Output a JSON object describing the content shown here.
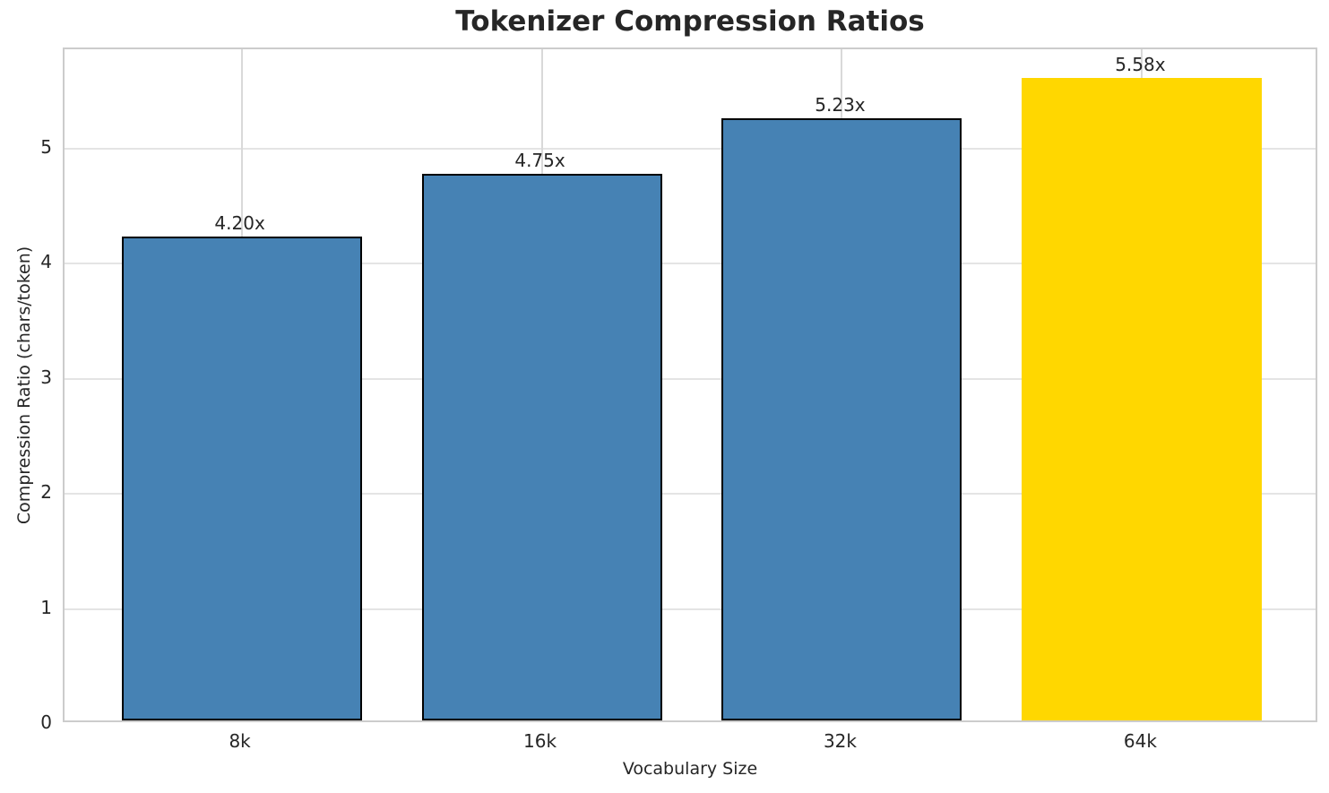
{
  "chart_data": {
    "type": "bar",
    "title": "Tokenizer Compression Ratios",
    "xlabel": "Vocabulary Size",
    "ylabel": "Compression Ratio (chars/token)",
    "categories": [
      "8k",
      "16k",
      "32k",
      "64k"
    ],
    "values": [
      4.2,
      4.75,
      5.23,
      5.58
    ],
    "bar_labels": [
      "4.20x",
      "4.75x",
      "5.23x",
      "5.58x"
    ],
    "bar_colors": [
      "#4682B4",
      "#4682B4",
      "#4682B4",
      "#FFD700"
    ],
    "bar_edge_colors": [
      "#000000",
      "#000000",
      "#000000",
      "none"
    ],
    "yticks": [
      0,
      1,
      2,
      3,
      4,
      5
    ],
    "ylim": [
      0,
      5.86
    ],
    "grid": true,
    "legend_position": "none",
    "colors": {
      "default_bar": "#4682B4",
      "highlight_bar": "#FFD700",
      "bar_edge": "#000000",
      "spine": "#cccccc",
      "gridline": "#e0e0e0",
      "text": "#262626"
    }
  }
}
